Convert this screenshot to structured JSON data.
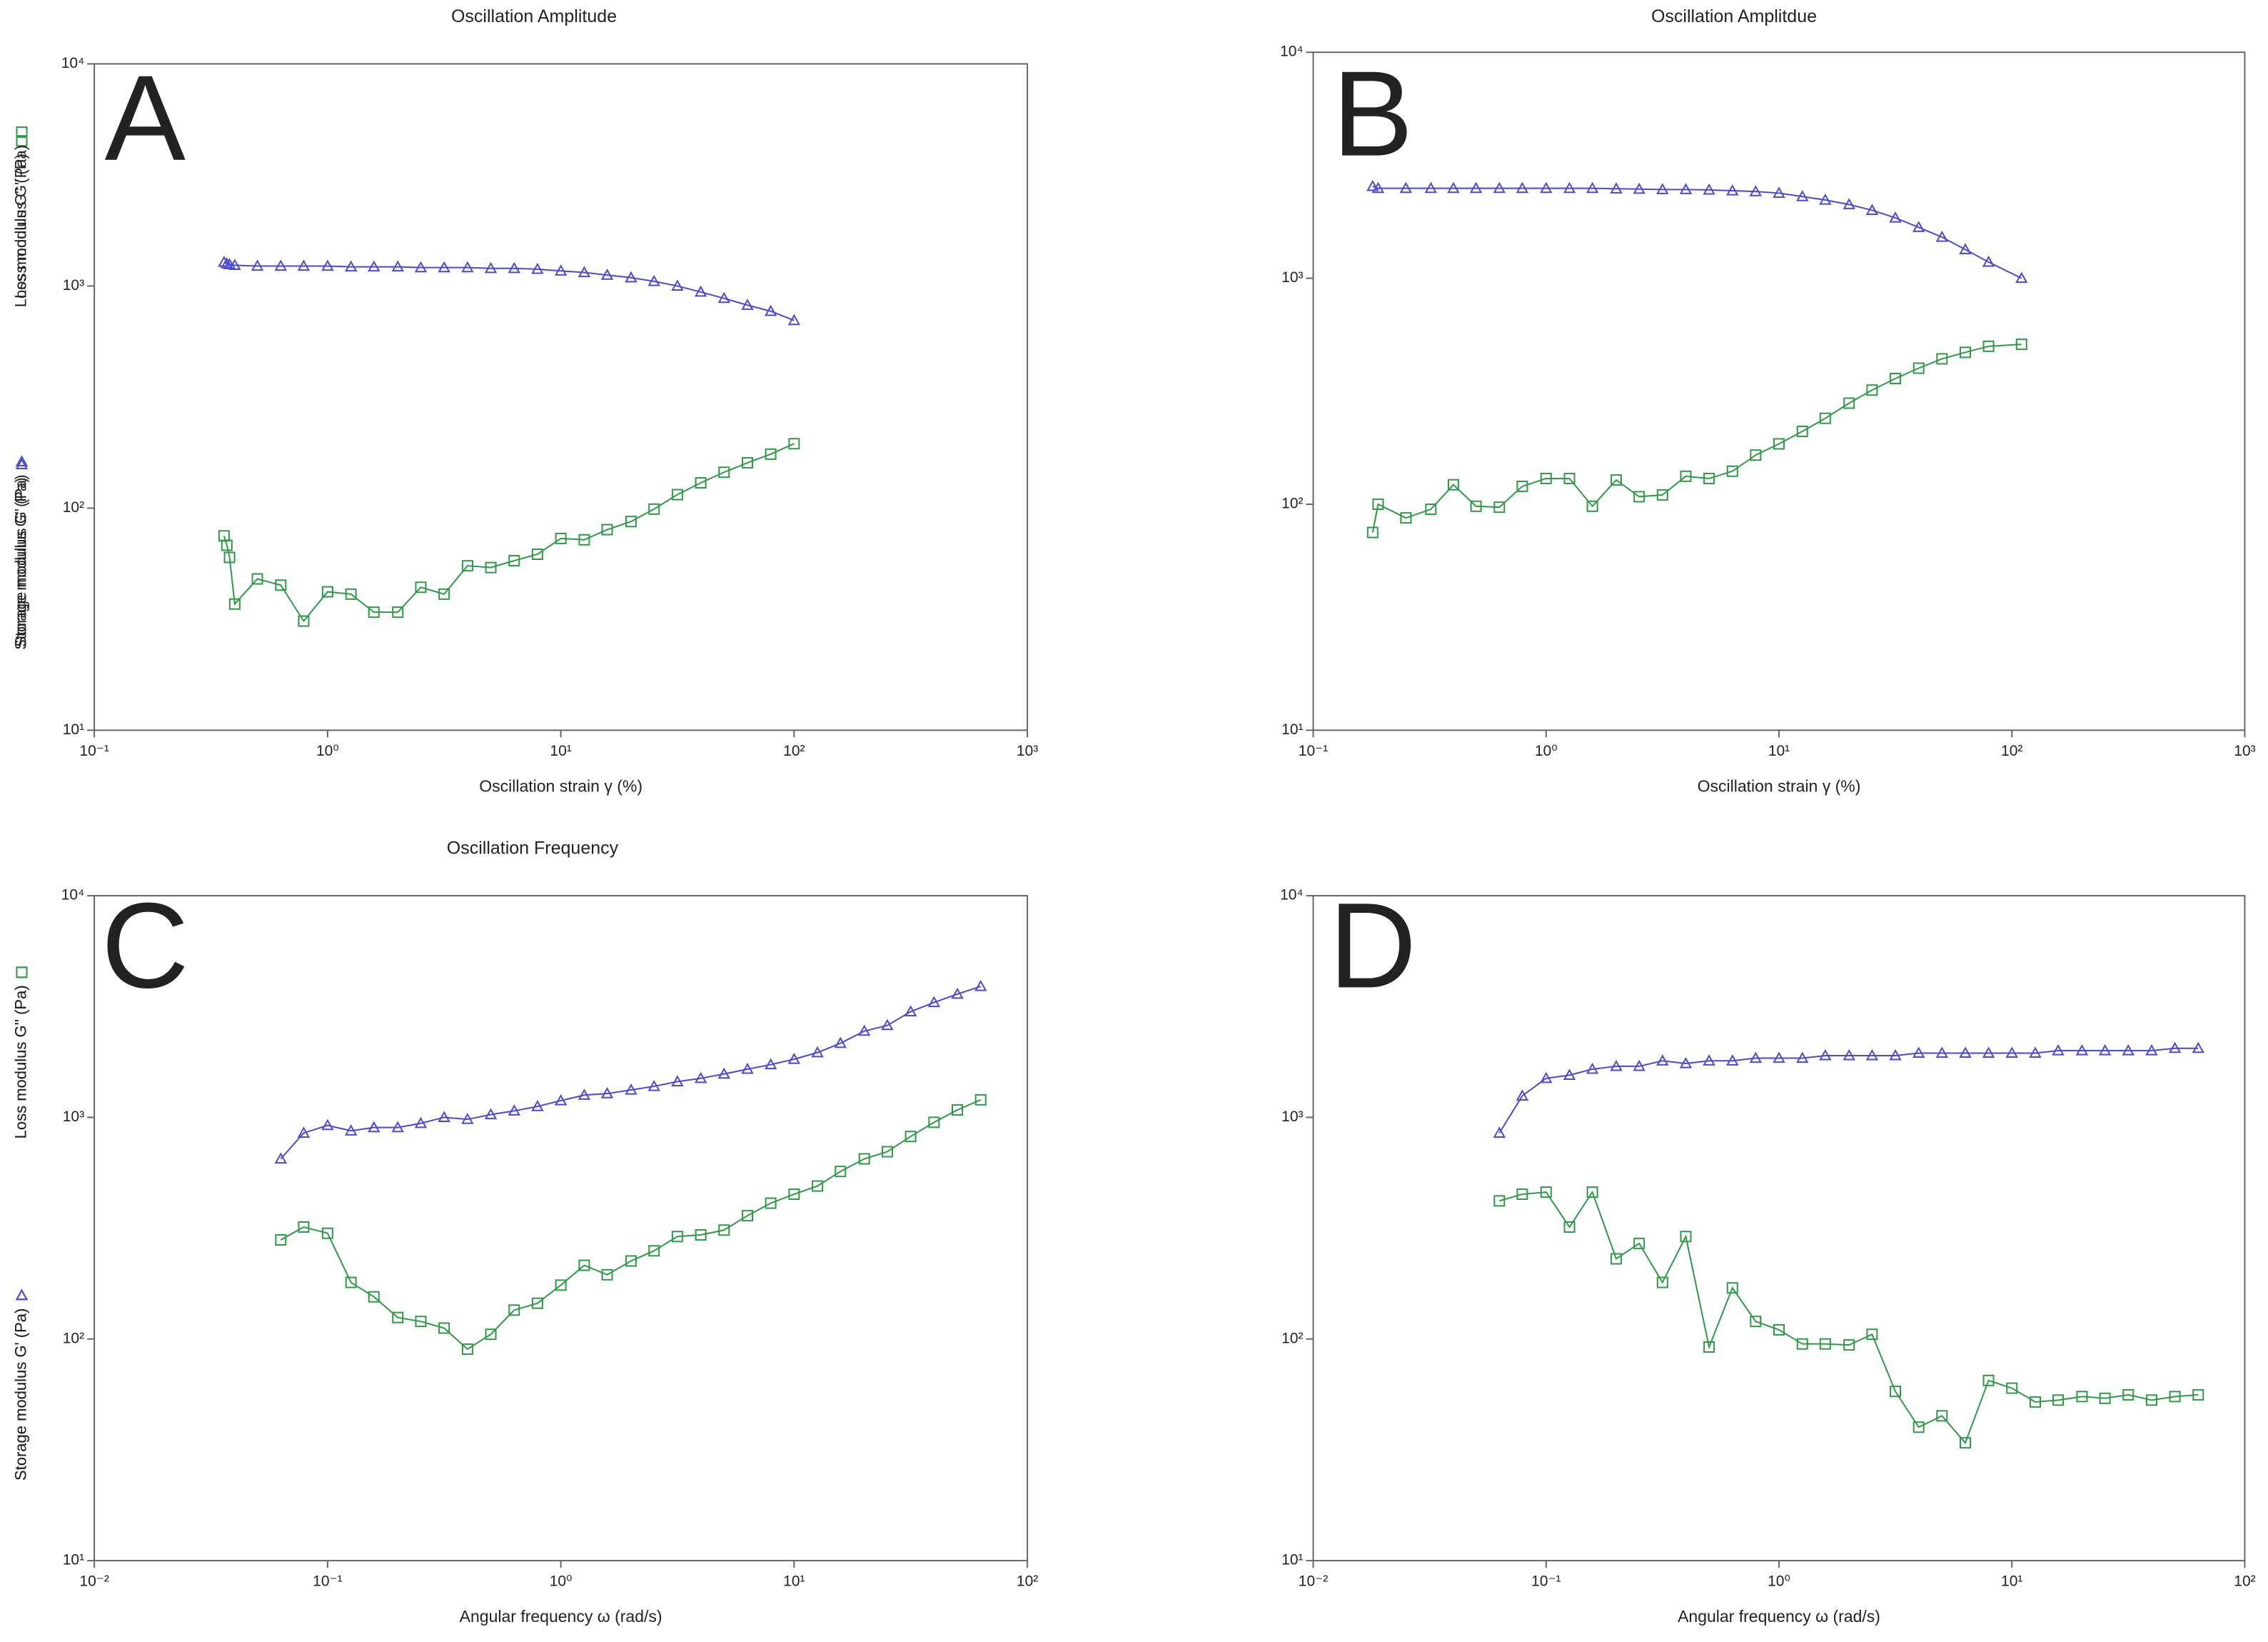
{
  "chart_data": [
    {
      "type": "line",
      "title": "Oscillation Amplitude",
      "panel_label": "A",
      "x_label": "Oscillation strain γ (%)",
      "xscale": "log",
      "yscale": "log",
      "xlim": [
        0.1,
        1000
      ],
      "ylim": [
        10,
        10000
      ],
      "xticks": [
        {
          "value": 0.1,
          "label": "10⁻¹"
        },
        {
          "value": 1,
          "label": "10⁰"
        },
        {
          "value": 10,
          "label": "10¹"
        },
        {
          "value": 100,
          "label": "10²"
        },
        {
          "value": 1000,
          "label": "10³"
        }
      ],
      "yticks": [
        {
          "value": 10,
          "label": "10¹"
        },
        {
          "value": 100,
          "label": "10²"
        },
        {
          "value": 1000,
          "label": "10³"
        },
        {
          "value": 10000,
          "label": "10⁴"
        }
      ],
      "x": [
        0.36,
        0.37,
        0.38,
        0.4,
        0.5,
        0.63,
        0.79,
        1,
        1.26,
        1.58,
        2,
        2.51,
        3.16,
        3.98,
        5.01,
        6.31,
        7.94,
        10,
        12.6,
        15.8,
        20,
        25.1,
        31.6,
        39.8,
        50.1,
        63.1,
        79.4,
        100
      ],
      "series": [
        {
          "name": "Storage modulus G' (Pa)",
          "marker": "triangle",
          "color": "#4a4ad6",
          "values": [
            1280,
            1260,
            1250,
            1240,
            1230,
            1230,
            1230,
            1230,
            1220,
            1220,
            1220,
            1210,
            1210,
            1210,
            1200,
            1200,
            1190,
            1170,
            1150,
            1120,
            1090,
            1050,
            1000,
            940,
            880,
            820,
            770,
            700
          ]
        },
        {
          "name": "Loss modulus G'' (Pa)",
          "marker": "square",
          "color": "#2e9a45",
          "values": [
            75,
            68,
            60,
            37,
            48,
            45,
            31,
            42,
            41,
            34,
            34,
            44,
            41,
            55,
            54,
            58,
            62,
            73,
            72,
            80,
            87,
            99,
            115,
            130,
            145,
            160,
            175,
            195
          ]
        }
      ]
    },
    {
      "type": "line",
      "title": "Oscillation Amplitdue",
      "panel_label": "B",
      "x_label": "Oscillation strain γ (%)",
      "xscale": "log",
      "yscale": "log",
      "xlim": [
        0.1,
        1000
      ],
      "ylim": [
        10,
        10000
      ],
      "xticks": [
        {
          "value": 0.1,
          "label": "10⁻¹"
        },
        {
          "value": 1,
          "label": "10⁰"
        },
        {
          "value": 10,
          "label": "10¹"
        },
        {
          "value": 100,
          "label": "10²"
        },
        {
          "value": 1000,
          "label": "10³"
        }
      ],
      "yticks": [
        {
          "value": 10,
          "label": "10¹"
        },
        {
          "value": 100,
          "label": "10²"
        },
        {
          "value": 1000,
          "label": "10³"
        },
        {
          "value": 10000,
          "label": "10⁴"
        }
      ],
      "x": [
        0.18,
        0.19,
        0.25,
        0.32,
        0.4,
        0.5,
        0.63,
        0.79,
        1,
        1.26,
        1.58,
        2,
        2.51,
        3.16,
        3.98,
        5.01,
        6.31,
        7.94,
        10,
        12.6,
        15.8,
        20,
        25.1,
        31.6,
        39.8,
        50.1,
        63.1,
        79.4,
        110
      ],
      "series": [
        {
          "name": "Storage modulus G' (Pa)",
          "marker": "triangle",
          "color": "#4a4ad6",
          "values": [
            2550,
            2500,
            2500,
            2500,
            2500,
            2500,
            2500,
            2500,
            2500,
            2500,
            2500,
            2490,
            2480,
            2470,
            2470,
            2460,
            2440,
            2420,
            2380,
            2300,
            2220,
            2120,
            2000,
            1850,
            1680,
            1520,
            1340,
            1180,
            1000
          ]
        },
        {
          "name": "Loss modulus G'' (Pa)",
          "marker": "square",
          "color": "#2e9a45",
          "values": [
            75,
            100,
            87,
            95,
            122,
            98,
            97,
            120,
            130,
            130,
            98,
            128,
            108,
            110,
            133,
            130,
            140,
            165,
            185,
            210,
            240,
            280,
            320,
            360,
            400,
            440,
            470,
            500,
            510
          ]
        }
      ]
    },
    {
      "type": "line",
      "title": "Oscillation Frequency",
      "panel_label": "C",
      "x_label": "Angular frequency ω (rad/s)",
      "xscale": "log",
      "yscale": "log",
      "xlim": [
        0.01,
        100
      ],
      "ylim": [
        10,
        10000
      ],
      "xticks": [
        {
          "value": 0.01,
          "label": "10⁻²"
        },
        {
          "value": 0.1,
          "label": "10⁻¹"
        },
        {
          "value": 1,
          "label": "10⁰"
        },
        {
          "value": 10,
          "label": "10¹"
        },
        {
          "value": 100,
          "label": "10²"
        }
      ],
      "yticks": [
        {
          "value": 10,
          "label": "10¹"
        },
        {
          "value": 100,
          "label": "10²"
        },
        {
          "value": 1000,
          "label": "10³"
        },
        {
          "value": 10000,
          "label": "10⁴"
        }
      ],
      "x": [
        0.063,
        0.079,
        0.1,
        0.126,
        0.158,
        0.2,
        0.251,
        0.316,
        0.398,
        0.501,
        0.631,
        0.794,
        1,
        1.26,
        1.58,
        2,
        2.51,
        3.16,
        3.98,
        5.01,
        6.31,
        7.94,
        10,
        12.6,
        15.8,
        20,
        25.1,
        31.6,
        39.8,
        50.1,
        63.1
      ],
      "series": [
        {
          "name": "Storage modulus G' (Pa)",
          "marker": "triangle",
          "color": "#4a4ad6",
          "values": [
            650,
            850,
            920,
            870,
            900,
            900,
            940,
            1000,
            980,
            1030,
            1070,
            1120,
            1190,
            1260,
            1280,
            1330,
            1380,
            1450,
            1500,
            1570,
            1650,
            1730,
            1830,
            1960,
            2160,
            2450,
            2600,
            3000,
            3300,
            3600,
            3900
          ]
        },
        {
          "name": "Loss modulus G'' (Pa)",
          "marker": "square",
          "color": "#2e9a45",
          "values": [
            280,
            320,
            300,
            180,
            155,
            125,
            120,
            112,
            90,
            105,
            135,
            145,
            175,
            215,
            195,
            225,
            250,
            290,
            295,
            310,
            360,
            410,
            450,
            490,
            570,
            650,
            700,
            820,
            950,
            1080,
            1200
          ]
        }
      ]
    },
    {
      "type": "line",
      "panel_label": "D",
      "x_label": "Angular frequency ω (rad/s)",
      "xscale": "log",
      "yscale": "log",
      "xlim": [
        0.01,
        100
      ],
      "ylim": [
        10,
        10000
      ],
      "xticks": [
        {
          "value": 0.01,
          "label": "10⁻²"
        },
        {
          "value": 0.1,
          "label": "10⁻¹"
        },
        {
          "value": 1,
          "label": "10⁰"
        },
        {
          "value": 10,
          "label": "10¹"
        },
        {
          "value": 100,
          "label": "10²"
        }
      ],
      "yticks": [
        {
          "value": 10,
          "label": "10¹"
        },
        {
          "value": 100,
          "label": "10²"
        },
        {
          "value": 1000,
          "label": "10³"
        },
        {
          "value": 10000,
          "label": "10⁴"
        }
      ],
      "x": [
        0.063,
        0.079,
        0.1,
        0.126,
        0.158,
        0.2,
        0.251,
        0.316,
        0.398,
        0.501,
        0.631,
        0.794,
        1,
        1.26,
        1.58,
        2,
        2.51,
        3.16,
        3.98,
        5.01,
        6.31,
        7.94,
        10,
        12.6,
        15.8,
        20,
        25.1,
        31.6,
        39.8,
        50.1,
        63.1
      ],
      "series": [
        {
          "name": "Storage modulus G' (Pa)",
          "marker": "triangle",
          "color": "#4a4ad6",
          "values": [
            850,
            1250,
            1500,
            1550,
            1650,
            1700,
            1700,
            1800,
            1750,
            1800,
            1800,
            1850,
            1850,
            1850,
            1900,
            1900,
            1900,
            1900,
            1950,
            1950,
            1950,
            1950,
            1950,
            1950,
            2000,
            2000,
            2000,
            2000,
            2000,
            2050,
            2050
          ]
        },
        {
          "name": "Loss modulus G'' (Pa)",
          "marker": "square",
          "color": "#2e9a45",
          "values": [
            420,
            450,
            460,
            320,
            460,
            230,
            270,
            180,
            290,
            92,
            170,
            120,
            110,
            95,
            95,
            94,
            105,
            58,
            40,
            45,
            34,
            65,
            60,
            52,
            53,
            55,
            54,
            56,
            53,
            55,
            56
          ]
        }
      ]
    }
  ]
}
